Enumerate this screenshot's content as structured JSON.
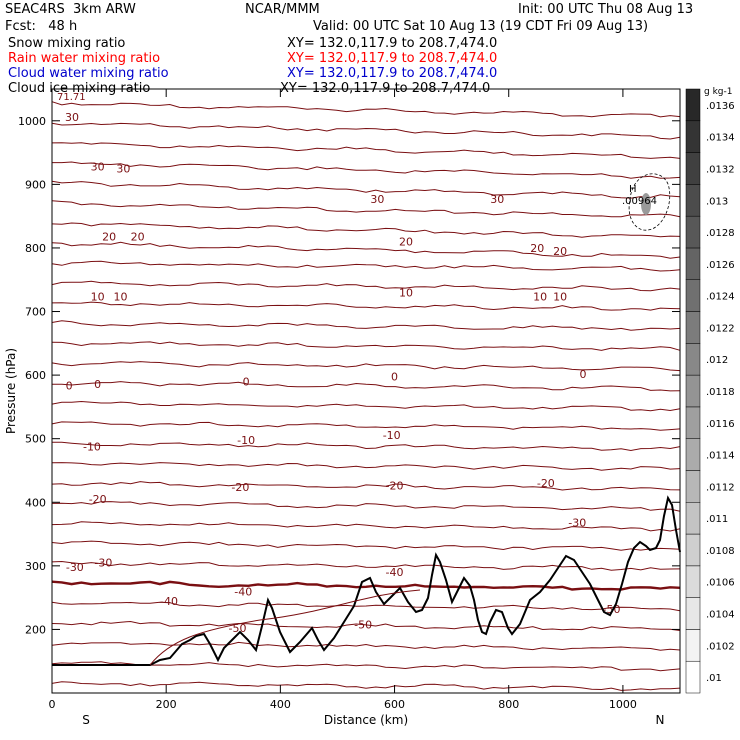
{
  "header": {
    "model": "SEAC4RS  3km ARW",
    "org": "NCAR/MMM",
    "init": "Init: 00 UTC Thu 08 Aug 13",
    "fcst": "Fcst:   48 h",
    "valid": "Valid: 00 UTC Sat 10 Aug 13 (19 CDT Fri 09 Aug 13)"
  },
  "fields": [
    {
      "name": "Snow mixing ratio",
      "xy": "XY= 132.0,117.9 to 208.7,474.0",
      "color": "#000000"
    },
    {
      "name": "Rain water mixing ratio",
      "xy": "XY= 132.0,117.9 to 208.7,474.0",
      "color": "#ff0000"
    },
    {
      "name": "Cloud water mixing ratio",
      "xy": "XY= 132.0,117.9 to 208.7,474.0",
      "color": "#0000cc"
    },
    {
      "name": "Cloud ice mixing ratio",
      "xy": "XY= 132.0,117.9 to 208.7,474.0",
      "color": "#000000"
    }
  ],
  "chart_data": {
    "type": "contour",
    "xlabel": "Distance (km)",
    "ylabel": "Pressure (hPa)",
    "xlim": [
      0,
      1100
    ],
    "ylim": [
      1050,
      100
    ],
    "xticks": [
      0,
      200,
      400,
      600,
      800,
      1000
    ],
    "yticks": [
      200,
      300,
      400,
      500,
      600,
      700,
      800,
      900,
      1000
    ],
    "left_label": "S",
    "right_label": "N",
    "top_left_value": "71.71",
    "temperature_labels": [
      {
        "text": "-50",
        "x": 325,
        "p": 202
      },
      {
        "text": "-50",
        "x": 545,
        "p": 208
      },
      {
        "text": "-50",
        "x": 980,
        "p": 232
      },
      {
        "text": "-40",
        "x": 205,
        "p": 245
      },
      {
        "text": "-40",
        "x": 335,
        "p": 260
      },
      {
        "text": "-40",
        "x": 600,
        "p": 290
      },
      {
        "text": "-30",
        "x": 40,
        "p": 298
      },
      {
        "text": "-30",
        "x": 90,
        "p": 305
      },
      {
        "text": "-30",
        "x": 920,
        "p": 368
      },
      {
        "text": "-20",
        "x": 80,
        "p": 405
      },
      {
        "text": "-20",
        "x": 330,
        "p": 424
      },
      {
        "text": "-20",
        "x": 600,
        "p": 426
      },
      {
        "text": "-20",
        "x": 865,
        "p": 430
      },
      {
        "text": "-10",
        "x": 70,
        "p": 488
      },
      {
        "text": "-10",
        "x": 340,
        "p": 498
      },
      {
        "text": "-10",
        "x": 595,
        "p": 506
      },
      {
        "text": "0",
        "x": 30,
        "p": 584
      },
      {
        "text": "0",
        "x": 80,
        "p": 586
      },
      {
        "text": "0",
        "x": 340,
        "p": 590
      },
      {
        "text": "0",
        "x": 600,
        "p": 598
      },
      {
        "text": "0",
        "x": 930,
        "p": 602
      },
      {
        "text": "10",
        "x": 80,
        "p": 724
      },
      {
        "text": "10",
        "x": 120,
        "p": 724
      },
      {
        "text": "10",
        "x": 620,
        "p": 730
      },
      {
        "text": "10",
        "x": 855,
        "p": 724
      },
      {
        "text": "10",
        "x": 890,
        "p": 724
      },
      {
        "text": "20",
        "x": 100,
        "p": 818
      },
      {
        "text": "20",
        "x": 150,
        "p": 818
      },
      {
        "text": "20",
        "x": 620,
        "p": 810
      },
      {
        "text": "20",
        "x": 850,
        "p": 800
      },
      {
        "text": "20",
        "x": 890,
        "p": 795
      },
      {
        "text": "30",
        "x": 80,
        "p": 928
      },
      {
        "text": "30",
        "x": 125,
        "p": 925
      },
      {
        "text": "30",
        "x": 570,
        "p": 877
      },
      {
        "text": "30",
        "x": 780,
        "p": 877
      },
      {
        "text": "30",
        "x": 35,
        "p": 1006
      }
    ],
    "ice_max_label": ".00964",
    "ice_max_marker": "H",
    "colorbar": {
      "unit": "g kg-1",
      "levels": [
        ".01",
        ".0102",
        ".0104",
        ".0106",
        ".0108",
        ".011",
        ".0112",
        ".0114",
        ".0116",
        ".0118",
        ".012",
        ".0122",
        ".0124",
        ".0126",
        ".0128",
        ".013",
        ".0132",
        ".0134",
        ".0136"
      ]
    }
  }
}
